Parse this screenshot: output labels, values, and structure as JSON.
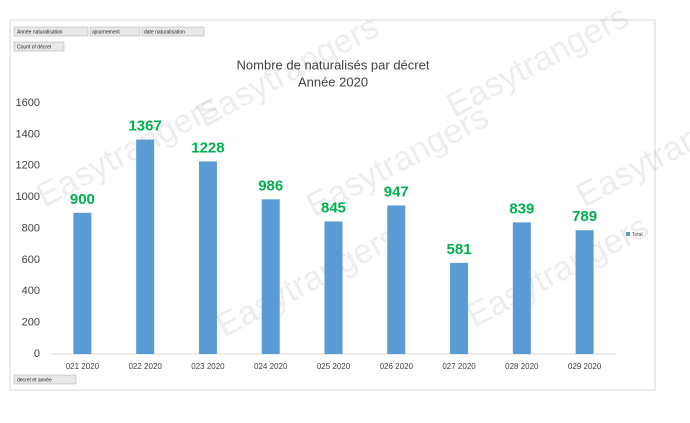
{
  "chart_data": {
    "type": "bar",
    "title": "Nombre de naturalisés par décret",
    "subtitle": "Année 2020",
    "watermark": "Easytrangers",
    "filters": [
      "Année naturalisation",
      "ajournement",
      "date naturalisation"
    ],
    "values_button": "Count of décret",
    "axis_button": "decret et année",
    "categories": [
      "021 2020",
      "022 2020",
      "023 2020",
      "024 2020",
      "025 2020",
      "026 2020",
      "027 2020",
      "028 2020",
      "029 2020"
    ],
    "series": [
      {
        "name": "Total",
        "color": "#5b9bd5",
        "values": [
          900,
          1367,
          1228,
          986,
          845,
          947,
          581,
          839,
          789
        ]
      }
    ],
    "value_label_color": "#00b050",
    "ylim": [
      0,
      1600
    ],
    "yticks": [
      0,
      200,
      400,
      600,
      800,
      1000,
      1200,
      1400,
      1600
    ],
    "grid": false,
    "legend": "right"
  }
}
